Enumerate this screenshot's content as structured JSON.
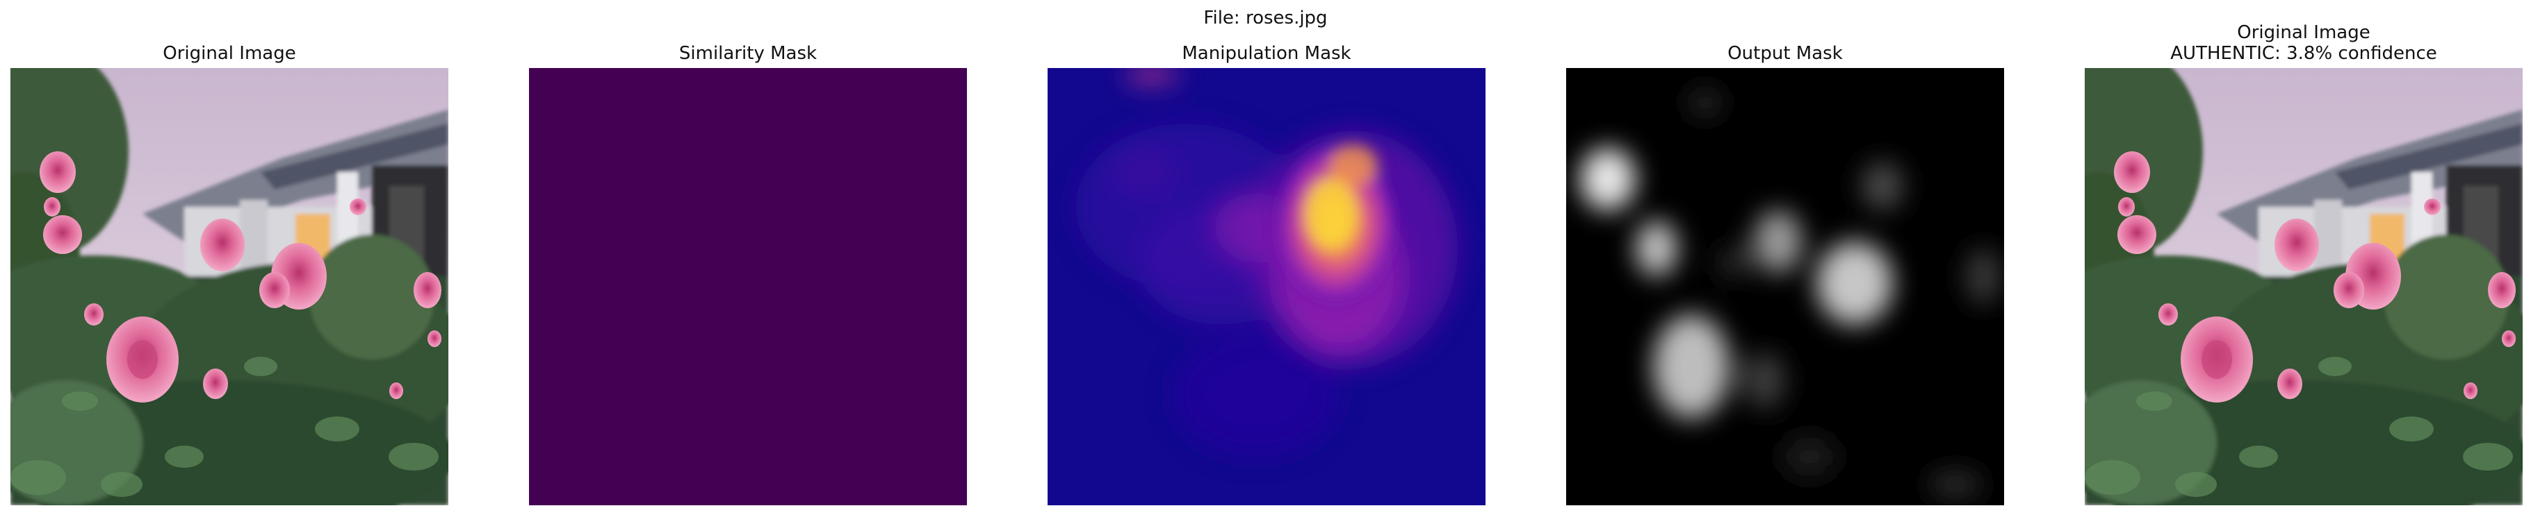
{
  "figure": {
    "suptitle": "File: roses.jpg",
    "panels": [
      {
        "title": "Original Image",
        "content": "garden-rose-photo"
      },
      {
        "title": "Similarity Mask",
        "content": "uniform-purple-mask",
        "fill_color": "#440154"
      },
      {
        "title": "Manipulation Mask",
        "content": "plasma-heatmap"
      },
      {
        "title": "Output Mask",
        "content": "grayscale-blob-mask"
      },
      {
        "title": "Original Image\nAUTHENTIC: 3.8% confidence",
        "content": "garden-rose-photo"
      }
    ]
  },
  "colors": {
    "viridis_low": "#440154",
    "plasma_low": "#12078f",
    "plasma_mid": "#c23ebf",
    "plasma_high": "#fde725",
    "mask_background": "#000000"
  }
}
